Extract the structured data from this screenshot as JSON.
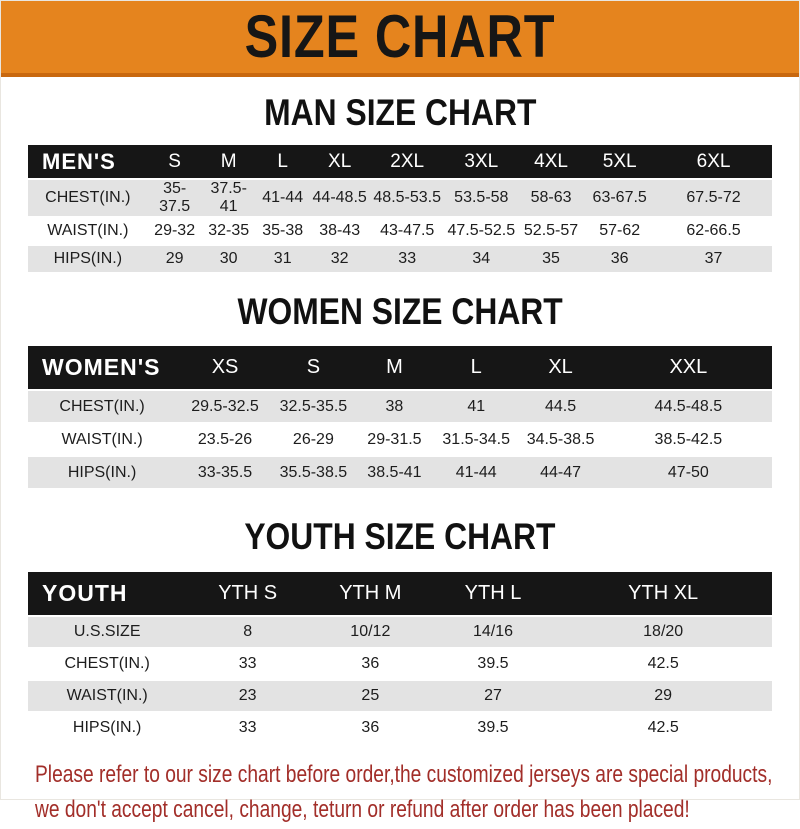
{
  "banner": {
    "title": "SIZE CHART"
  },
  "sections": [
    {
      "id": "men",
      "heading": "MAN SIZE CHART",
      "corner_label": "MEN'S",
      "columns": [
        "S",
        "M",
        "L",
        "XL",
        "2XL",
        "3XL",
        "4XL",
        "5XL",
        "6XL"
      ],
      "rows": [
        {
          "label": "CHEST(IN.)",
          "values": [
            "35-37.5",
            "37.5-41",
            "41-44",
            "44-48.5",
            "48.5-53.5",
            "53.5-58",
            "58-63",
            "63-67.5",
            "67.5-72"
          ]
        },
        {
          "label": "WAIST(IN.)",
          "values": [
            "29-32",
            "32-35",
            "35-38",
            "38-43",
            "43-47.5",
            "47.5-52.5",
            "52.5-57",
            "57-62",
            "62-66.5"
          ]
        },
        {
          "label": "HIPS(IN.)",
          "values": [
            "29",
            "30",
            "31",
            "32",
            "33",
            "34",
            "35",
            "36",
            "37"
          ]
        }
      ]
    },
    {
      "id": "women",
      "heading": "WOMEN SIZE CHART",
      "corner_label": "WOMEN'S",
      "columns": [
        "XS",
        "S",
        "M",
        "L",
        "XL",
        "XXL"
      ],
      "rows": [
        {
          "label": "CHEST(IN.)",
          "values": [
            "29.5-32.5",
            "32.5-35.5",
            "38",
            "41",
            "44.5",
            "44.5-48.5"
          ]
        },
        {
          "label": "WAIST(IN.)",
          "values": [
            "23.5-26",
            "26-29",
            "29-31.5",
            "31.5-34.5",
            "34.5-38.5",
            "38.5-42.5"
          ]
        },
        {
          "label": "HIPS(IN.)",
          "values": [
            "33-35.5",
            "35.5-38.5",
            "38.5-41",
            "41-44",
            "44-47",
            "47-50"
          ]
        }
      ]
    },
    {
      "id": "youth",
      "heading": "YOUTH SIZE CHART",
      "corner_label": "YOUTH",
      "columns": [
        "YTH S",
        "YTH M",
        "YTH L",
        "YTH XL"
      ],
      "rows": [
        {
          "label": "U.S.SIZE",
          "values": [
            "8",
            "10/12",
            "14/16",
            "18/20"
          ]
        },
        {
          "label": "CHEST(IN.)",
          "values": [
            "33",
            "36",
            "39.5",
            "42.5"
          ]
        },
        {
          "label": "WAIST(IN.)",
          "values": [
            "23",
            "25",
            "27",
            "29"
          ]
        },
        {
          "label": "HIPS(IN.)",
          "values": [
            "33",
            "36",
            "39.5",
            "42.5"
          ]
        }
      ]
    }
  ],
  "disclaimer": {
    "line1": "Please refer to our size chart before order,the customized jerseys are special products,",
    "line2": "we don't accept cancel, change, teturn or refund after order has been placed!"
  },
  "colors": {
    "banner_bg": "#E5841E",
    "banner_border": "#C8680F",
    "table_header_bg": "#161616",
    "row_stripe_gray": "#E3E3E3",
    "disclaimer_red": "#A22E29",
    "title_text": "#161616"
  }
}
